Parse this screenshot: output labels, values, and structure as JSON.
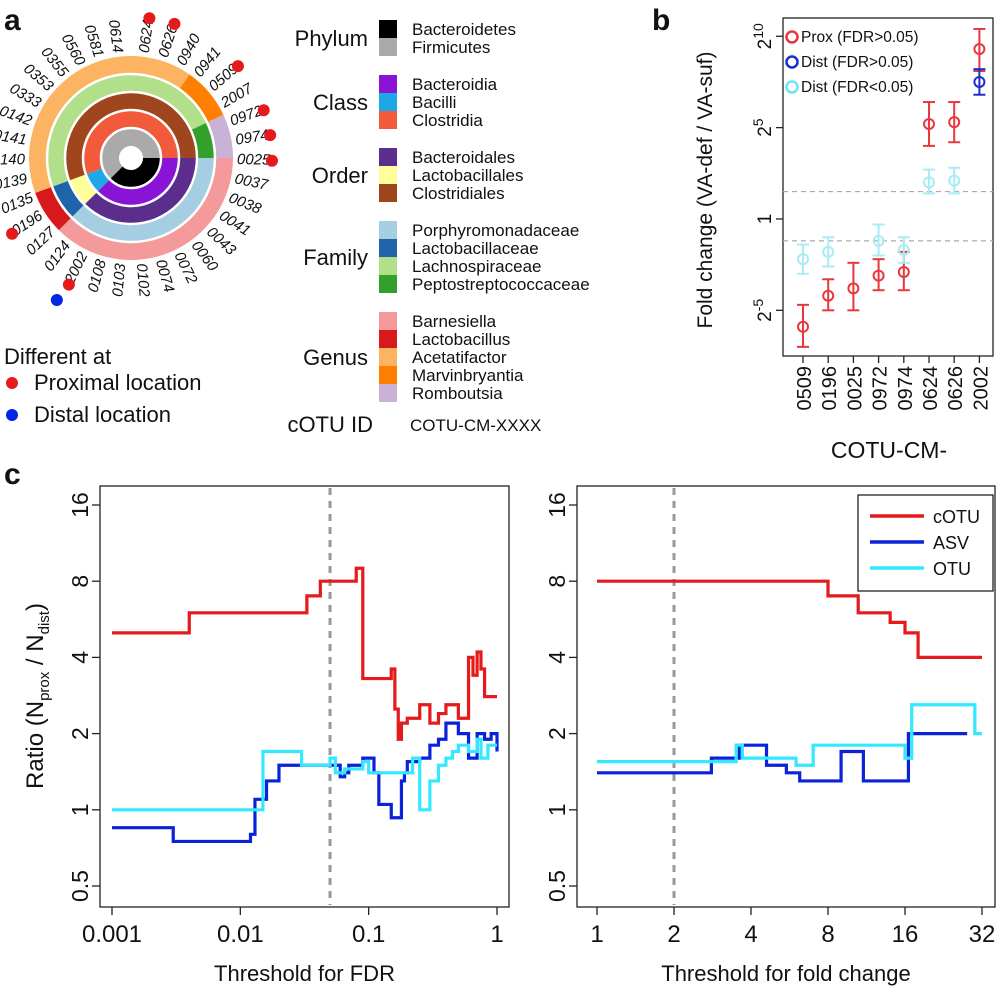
{
  "panel_labels": {
    "a": "a",
    "b": "b",
    "c": "c"
  },
  "panel_a": {
    "outer_ids": [
      "0624",
      "0626",
      "0940",
      "0941",
      "0509",
      "2007",
      "0972",
      "0974",
      "0025",
      "0037",
      "0038",
      "0041",
      "0043",
      "0060",
      "0072",
      "0074",
      "0102",
      "0103",
      "0108",
      "2002",
      "0124",
      "0127",
      "0196",
      "0135",
      "0139",
      "0140",
      "0141",
      "0142",
      "0333",
      "0353",
      "0355",
      "0560",
      "0581",
      "0614"
    ],
    "proximal_marked": [
      "0624",
      "0626",
      "0509",
      "0972",
      "0974",
      "0025",
      "0196",
      "2002"
    ],
    "distal_marked": [
      "2002"
    ],
    "legend_groups": [
      {
        "level": "Phylum",
        "items": [
          {
            "name": "Bacteroidetes",
            "color": "#000000"
          },
          {
            "name": "Firmicutes",
            "color": "#aaaaaa"
          }
        ]
      },
      {
        "level": "Class",
        "items": [
          {
            "name": "Bacteroidia",
            "color": "#8a14d6"
          },
          {
            "name": "Bacilli",
            "color": "#1fa8e8"
          },
          {
            "name": "Clostridia",
            "color": "#f25a3c"
          }
        ]
      },
      {
        "level": "Order",
        "items": [
          {
            "name": "Bacteroidales",
            "color": "#5b2d8c"
          },
          {
            "name": "Lactobacillales",
            "color": "#ffff99"
          },
          {
            "name": "Clostridiales",
            "color": "#a0461e"
          }
        ]
      },
      {
        "level": "Family",
        "items": [
          {
            "name": "Porphyromonadaceae",
            "color": "#a6cee3"
          },
          {
            "name": "Lactobacillaceae",
            "color": "#1f64a8"
          },
          {
            "name": "Lachnospiraceae",
            "color": "#b2df8a"
          },
          {
            "name": "Peptostreptococcaceae",
            "color": "#33a02c"
          }
        ]
      },
      {
        "level": "Genus",
        "items": [
          {
            "name": "Barnesiella",
            "color": "#f59a9a"
          },
          {
            "name": "Lactobacillus",
            "color": "#d7191c"
          },
          {
            "name": "Acetatifactor",
            "color": "#fdb462"
          },
          {
            "name": "Marvinbryantia",
            "color": "#ff7f00"
          },
          {
            "name": "Romboutsia",
            "color": "#cab2d6"
          }
        ]
      }
    ],
    "diff_title": "Different at",
    "diff_items": [
      {
        "label": "Proximal location",
        "color": "#e41a1c"
      },
      {
        "label": "Distal location",
        "color": "#0026e6"
      }
    ],
    "cotu_label": "cOTU ID",
    "cotu_value": "COTU-CM-XXXX"
  },
  "chart_data": [
    {
      "id": "b",
      "type": "scatter",
      "ylabel": "Fold change (VA-def / VA-suf)",
      "xlabel": "COTU-CM-",
      "categories": [
        "0509",
        "0196",
        "0025",
        "0972",
        "0974",
        "0624",
        "0626",
        "2002"
      ],
      "y_log2_range": [
        -7.5,
        11
      ],
      "y_ticks": [
        {
          "exp": -5,
          "label": "2",
          "sup": "-5"
        },
        {
          "exp": 0,
          "label": "1",
          "sup": ""
        },
        {
          "exp": 5,
          "label": "2",
          "sup": "5"
        },
        {
          "exp": 10,
          "label": "2",
          "sup": "10"
        }
      ],
      "hlines_log2": [
        1.5,
        -1.2
      ],
      "legend": [
        {
          "label": "Prox (FDR>0.05)",
          "color": "#e8383d"
        },
        {
          "label": "Dist (FDR>0.05)",
          "color": "#1a2fcc"
        },
        {
          "label": "Dist (FDR<0.05)",
          "color": "#6ee6f0"
        }
      ],
      "series": [
        {
          "name": "Prox (FDR>0.05)",
          "color": "#e8383d",
          "points": [
            {
              "cat": "0509",
              "y": -5.9,
              "lo": -7.0,
              "hi": -4.7
            },
            {
              "cat": "0196",
              "y": -4.2,
              "lo": -5.0,
              "hi": -3.3
            },
            {
              "cat": "0025",
              "y": -3.8,
              "lo": -5.0,
              "hi": -2.4
            },
            {
              "cat": "0972",
              "y": -3.1,
              "lo": -3.9,
              "hi": -2.2
            },
            {
              "cat": "0974",
              "y": -2.9,
              "lo": -3.9,
              "hi": -1.8
            },
            {
              "cat": "0624",
              "y": 5.2,
              "lo": 4.0,
              "hi": 6.4
            },
            {
              "cat": "0626",
              "y": 5.3,
              "lo": 4.2,
              "hi": 6.4
            },
            {
              "cat": "2002",
              "y": 9.3,
              "lo": 8.1,
              "hi": 10.4
            }
          ]
        },
        {
          "name": "Dist (FDR<0.05)",
          "color": "#a8ecf5",
          "points": [
            {
              "cat": "0509",
              "y": -2.2,
              "lo": -3.0,
              "hi": -1.4
            },
            {
              "cat": "0196",
              "y": -1.8,
              "lo": -2.6,
              "hi": -1.0
            },
            {
              "cat": "0972",
              "y": -1.2,
              "lo": -2.0,
              "hi": -0.3
            },
            {
              "cat": "0974",
              "y": -1.7,
              "lo": -2.4,
              "hi": -1.0
            },
            {
              "cat": "0624",
              "y": 2.0,
              "lo": 1.4,
              "hi": 2.7
            },
            {
              "cat": "0626",
              "y": 2.1,
              "lo": 1.4,
              "hi": 2.8
            }
          ]
        },
        {
          "name": "Dist (FDR>0.05)",
          "color": "#1a2fcc",
          "points": [
            {
              "cat": "2002",
              "y": 7.5,
              "lo": 6.8,
              "hi": 8.2
            }
          ]
        }
      ]
    },
    {
      "id": "c-left",
      "type": "line",
      "ylabel": "Ratio (N_prox / N_dist)",
      "ylabel_parts": {
        "pre": "Ratio (N",
        "sub1": "prox",
        "mid": " / N",
        "sub2": "dist",
        "post": ")"
      },
      "xlabel": "Threshold for FDR",
      "x_log10_range": [
        -3,
        0
      ],
      "x_ticks": [
        {
          "v": 0.001,
          "label": "0.001"
        },
        {
          "v": 0.01,
          "label": "0.01"
        },
        {
          "v": 0.1,
          "label": "0.1"
        },
        {
          "v": 1,
          "label": "1"
        }
      ],
      "y_log2_range": [
        -1,
        4
      ],
      "y_ticks": [
        {
          "v": 0.5,
          "label": "0.5"
        },
        {
          "v": 1,
          "label": "1"
        },
        {
          "v": 2,
          "label": "2"
        },
        {
          "v": 4,
          "label": "4"
        },
        {
          "v": 8,
          "label": "8"
        },
        {
          "v": 16,
          "label": "16"
        }
      ],
      "vline": 0.05,
      "series": [
        {
          "name": "cOTU",
          "color": "#e41a1c",
          "x": [
            0.001,
            0.003,
            0.004,
            0.028,
            0.033,
            0.042,
            0.065,
            0.08,
            0.085,
            0.09,
            0.15,
            0.16,
            0.17,
            0.18,
            0.2,
            0.25,
            0.3,
            0.35,
            0.4,
            0.5,
            0.6,
            0.65,
            0.7,
            0.75,
            0.8,
            0.85,
            0.9,
            1.0
          ],
          "y": [
            5,
            5,
            6,
            6,
            7,
            8,
            8,
            9,
            9,
            3.3,
            3.6,
            2.5,
            1.9,
            2.2,
            2.3,
            2.6,
            2.2,
            2.4,
            2.6,
            2.3,
            4,
            3.4,
            4.2,
            3.6,
            2.8,
            2.8,
            2.8,
            2.8
          ],
          "step": true
        },
        {
          "name": "ASV",
          "color": "#0a22d8",
          "x": [
            0.001,
            0.002,
            0.003,
            0.011,
            0.012,
            0.013,
            0.016,
            0.02,
            0.045,
            0.06,
            0.065,
            0.07,
            0.09,
            0.11,
            0.12,
            0.15,
            0.18,
            0.19,
            0.2,
            0.25,
            0.3,
            0.35,
            0.4,
            0.5,
            0.6,
            0.7,
            0.8,
            0.9,
            1.0
          ],
          "y": [
            0.85,
            0.85,
            0.75,
            0.75,
            0.8,
            1.1,
            1.3,
            1.5,
            1.5,
            1.35,
            1.4,
            1.5,
            1.6,
            1.4,
            1.05,
            0.93,
            1.3,
            1.4,
            1.55,
            1.6,
            1.8,
            1.9,
            2.2,
            2.0,
            1.6,
            2.0,
            1.9,
            2.0,
            1.7
          ],
          "step": true
        },
        {
          "name": "OTU",
          "color": "#33e8ff",
          "x": [
            0.001,
            0.012,
            0.015,
            0.03,
            0.045,
            0.05,
            0.055,
            0.065,
            0.09,
            0.1,
            0.2,
            0.22,
            0.25,
            0.3,
            0.35,
            0.4,
            0.45,
            0.5,
            0.6,
            0.7,
            0.75,
            0.85,
            1.0
          ],
          "y": [
            1,
            1,
            1.7,
            1.5,
            1.5,
            1.6,
            1.4,
            1.45,
            1.55,
            1.4,
            1.4,
            1.6,
            1.0,
            1.3,
            1.5,
            1.6,
            1.7,
            1.8,
            1.7,
            1.9,
            1.6,
            1.8,
            1.8
          ],
          "step": true
        }
      ]
    },
    {
      "id": "c-right",
      "type": "line",
      "xlabel": "Threshold for fold change",
      "x_log2_range": [
        0,
        5
      ],
      "x_ticks": [
        {
          "v": 1,
          "label": "1"
        },
        {
          "v": 2,
          "label": "2"
        },
        {
          "v": 4,
          "label": "4"
        },
        {
          "v": 8,
          "label": "8"
        },
        {
          "v": 16,
          "label": "16"
        },
        {
          "v": 32,
          "label": "32"
        }
      ],
      "y_log2_range": [
        -1,
        4
      ],
      "y_ticks": [
        {
          "v": 0.5,
          "label": "0.5"
        },
        {
          "v": 1,
          "label": "1"
        },
        {
          "v": 2,
          "label": "2"
        },
        {
          "v": 4,
          "label": "4"
        },
        {
          "v": 8,
          "label": "8"
        },
        {
          "v": 16,
          "label": "16"
        }
      ],
      "vline": 2,
      "legend": [
        {
          "label": "cOTU",
          "color": "#e41a1c"
        },
        {
          "label": "ASV",
          "color": "#0a22d8"
        },
        {
          "label": "OTU",
          "color": "#33e8ff"
        }
      ],
      "series": [
        {
          "name": "cOTU",
          "color": "#e41a1c",
          "x": [
            1,
            7.3,
            8,
            9,
            10.5,
            12,
            14,
            16,
            18,
            32
          ],
          "y": [
            8,
            8,
            7,
            7,
            6,
            6,
            5.5,
            5,
            4,
            4
          ],
          "step": true
        },
        {
          "name": "ASV",
          "color": "#0a22d8",
          "x": [
            1,
            2.4,
            2.8,
            3.2,
            3.6,
            4,
            4.6,
            5.5,
            6.2,
            7,
            8,
            9,
            10,
            11,
            12,
            16.5,
            19,
            28
          ],
          "y": [
            1.4,
            1.4,
            1.6,
            1.6,
            1.8,
            1.8,
            1.5,
            1.4,
            1.3,
            1.3,
            1.3,
            1.7,
            1.7,
            1.3,
            1.3,
            2.0,
            2.0,
            2.0
          ],
          "step": true
        },
        {
          "name": "OTU",
          "color": "#33e8ff",
          "x": [
            1,
            3.2,
            3.5,
            3.7,
            4.2,
            5.2,
            6,
            7,
            8,
            14,
            16,
            17,
            26,
            30,
            32
          ],
          "y": [
            1.55,
            1.55,
            1.8,
            1.6,
            1.6,
            1.6,
            1.5,
            1.8,
            1.8,
            1.8,
            1.6,
            2.6,
            2.6,
            2.0,
            2.0
          ],
          "step": true
        }
      ]
    }
  ]
}
